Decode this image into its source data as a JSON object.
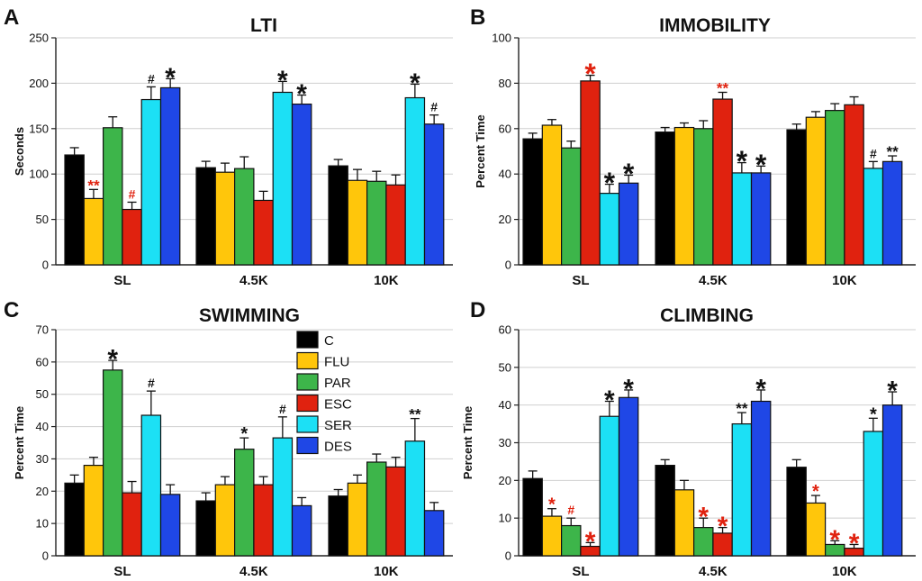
{
  "legend": {
    "items": [
      {
        "label": "C",
        "color": "#000000"
      },
      {
        "label": "FLU",
        "color": "#FFC60B"
      },
      {
        "label": "PAR",
        "color": "#3DB54A"
      },
      {
        "label": "ESC",
        "color": "#E0220F"
      },
      {
        "label": "SER",
        "color": "#1CE0F5"
      },
      {
        "label": "DES",
        "color": "#1F47E6"
      }
    ]
  },
  "chart_data": [
    {
      "panel": "A",
      "type": "bar",
      "title": "LTI",
      "ylabel": "Seconds",
      "ylim": [
        0,
        250
      ],
      "yticks": [
        0,
        50,
        100,
        150,
        200,
        250
      ],
      "categories": [
        "SL",
        "4.5K",
        "10K"
      ],
      "grid": true,
      "series": [
        {
          "name": "C",
          "values": [
            121,
            107,
            109
          ],
          "errors": [
            8,
            7,
            7
          ]
        },
        {
          "name": "FLU",
          "values": [
            73,
            102,
            93
          ],
          "errors": [
            10,
            10,
            12
          ]
        },
        {
          "name": "PAR",
          "values": [
            151,
            106,
            92
          ],
          "errors": [
            12,
            13,
            11
          ]
        },
        {
          "name": "ESC",
          "values": [
            61,
            71,
            88
          ],
          "errors": [
            8,
            10,
            11
          ]
        },
        {
          "name": "SER",
          "values": [
            182,
            190,
            184
          ],
          "errors": [
            14,
            12,
            15
          ]
        },
        {
          "name": "DES",
          "values": [
            195,
            177,
            155
          ],
          "errors": [
            10,
            10,
            10
          ]
        }
      ],
      "annotations": [
        {
          "category": "SL",
          "series": "FLU",
          "text": "**",
          "color": "#E0220F",
          "size": 17
        },
        {
          "category": "SL",
          "series": "ESC",
          "text": "#",
          "color": "#E0220F",
          "size": 14
        },
        {
          "category": "SL",
          "series": "SER",
          "text": "#",
          "color": "#111111",
          "size": 14
        },
        {
          "category": "SL",
          "series": "DES",
          "text": "*",
          "color": "#111111",
          "size": 30
        },
        {
          "category": "4.5K",
          "series": "SER",
          "text": "*",
          "color": "#111111",
          "size": 30
        },
        {
          "category": "4.5K",
          "series": "DES",
          "text": "*",
          "color": "#111111",
          "size": 30
        },
        {
          "category": "10K",
          "series": "SER",
          "text": "*",
          "color": "#111111",
          "size": 30
        },
        {
          "category": "10K",
          "series": "DES",
          "text": "#",
          "color": "#111111",
          "size": 14
        }
      ]
    },
    {
      "panel": "B",
      "type": "bar",
      "title": "IMMOBILITY",
      "ylabel": "Percent Time",
      "ylim": [
        0,
        100
      ],
      "yticks": [
        0,
        20,
        40,
        60,
        80,
        100
      ],
      "categories": [
        "SL",
        "4.5K",
        "10K"
      ],
      "grid": true,
      "series": [
        {
          "name": "C",
          "values": [
            55.5,
            58.5,
            59.5
          ],
          "errors": [
            2.5,
            2,
            2.5
          ]
        },
        {
          "name": "FLU",
          "values": [
            61.5,
            60.5,
            65
          ],
          "errors": [
            2.5,
            2,
            2.5
          ]
        },
        {
          "name": "PAR",
          "values": [
            51.5,
            60,
            68
          ],
          "errors": [
            3,
            3.5,
            3
          ]
        },
        {
          "name": "ESC",
          "values": [
            81,
            73,
            70.5
          ],
          "errors": [
            2.5,
            3,
            3.5
          ]
        },
        {
          "name": "SER",
          "values": [
            31.5,
            40.5,
            42.5
          ],
          "errors": [
            4,
            4.5,
            3
          ]
        },
        {
          "name": "DES",
          "values": [
            36,
            40.5,
            45.5
          ],
          "errors": [
            3.5,
            3,
            2.5
          ]
        }
      ],
      "annotations": [
        {
          "category": "SL",
          "series": "ESC",
          "text": "*",
          "color": "#E0220F",
          "size": 32
        },
        {
          "category": "SL",
          "series": "SER",
          "text": "*",
          "color": "#111111",
          "size": 32
        },
        {
          "category": "SL",
          "series": "DES",
          "text": "*",
          "color": "#111111",
          "size": 32
        },
        {
          "category": "4.5K",
          "series": "ESC",
          "text": "**",
          "color": "#E0220F",
          "size": 17
        },
        {
          "category": "4.5K",
          "series": "SER",
          "text": "*",
          "color": "#111111",
          "size": 32
        },
        {
          "category": "4.5K",
          "series": "DES",
          "text": "*",
          "color": "#111111",
          "size": 32
        },
        {
          "category": "10K",
          "series": "SER",
          "text": "#",
          "color": "#111111",
          "size": 14
        },
        {
          "category": "10K",
          "series": "DES",
          "text": "**",
          "color": "#111111",
          "size": 17
        }
      ]
    },
    {
      "panel": "C",
      "type": "bar",
      "title": "SWIMMING",
      "ylabel": "Percent Time",
      "ylim": [
        0,
        70
      ],
      "yticks": [
        0,
        10,
        20,
        30,
        40,
        50,
        60,
        70
      ],
      "categories": [
        "SL",
        "4.5K",
        "10K"
      ],
      "grid": true,
      "legend": "inside, center",
      "series": [
        {
          "name": "C",
          "values": [
            22.5,
            17,
            18.5
          ],
          "errors": [
            2.5,
            2.5,
            2
          ]
        },
        {
          "name": "FLU",
          "values": [
            28,
            22,
            22.5
          ],
          "errors": [
            2.5,
            2.5,
            2.5
          ]
        },
        {
          "name": "PAR",
          "values": [
            57.5,
            33,
            29
          ],
          "errors": [
            3,
            3.5,
            2.5
          ]
        },
        {
          "name": "ESC",
          "values": [
            19.5,
            22,
            27.5
          ],
          "errors": [
            3.5,
            2.5,
            3
          ]
        },
        {
          "name": "SER",
          "values": [
            43.5,
            36.5,
            35.5
          ],
          "errors": [
            7.5,
            6.5,
            7
          ]
        },
        {
          "name": "DES",
          "values": [
            19,
            15.5,
            14
          ],
          "errors": [
            3,
            2.5,
            2.5
          ]
        }
      ],
      "annotations": [
        {
          "category": "SL",
          "series": "PAR",
          "text": "*",
          "color": "#111111",
          "size": 30
        },
        {
          "category": "SL",
          "series": "SER",
          "text": "#",
          "color": "#111111",
          "size": 14
        },
        {
          "category": "4.5K",
          "series": "PAR",
          "text": "*",
          "color": "#111111",
          "size": 20
        },
        {
          "category": "4.5K",
          "series": "SER",
          "text": "#",
          "color": "#111111",
          "size": 14
        },
        {
          "category": "10K",
          "series": "SER",
          "text": "**",
          "color": "#111111",
          "size": 17
        }
      ]
    },
    {
      "panel": "D",
      "type": "bar",
      "title": "CLIMBING",
      "ylabel": "Percent Time",
      "ylim": [
        0,
        60
      ],
      "yticks": [
        0,
        10,
        20,
        30,
        40,
        50,
        60
      ],
      "categories": [
        "SL",
        "4.5K",
        "10K"
      ],
      "grid": true,
      "series": [
        {
          "name": "C",
          "values": [
            20.5,
            24,
            23.5
          ],
          "errors": [
            2,
            1.5,
            2
          ]
        },
        {
          "name": "FLU",
          "values": [
            10.5,
            17.5,
            14
          ],
          "errors": [
            2,
            2.5,
            2
          ]
        },
        {
          "name": "PAR",
          "values": [
            8,
            7.5,
            3
          ],
          "errors": [
            2,
            2.5,
            1
          ]
        },
        {
          "name": "ESC",
          "values": [
            2.5,
            6,
            2
          ],
          "errors": [
            1,
            1.5,
            1
          ]
        },
        {
          "name": "SER",
          "values": [
            37,
            35,
            33
          ],
          "errors": [
            4,
            3,
            3.5
          ]
        },
        {
          "name": "DES",
          "values": [
            42,
            41,
            40
          ],
          "errors": [
            2,
            3,
            3.5
          ]
        }
      ],
      "annotations": [
        {
          "category": "SL",
          "series": "FLU",
          "text": "*",
          "color": "#E0220F",
          "size": 20
        },
        {
          "category": "SL",
          "series": "PAR",
          "text": "#",
          "color": "#E0220F",
          "size": 14
        },
        {
          "category": "SL",
          "series": "ESC",
          "text": "*",
          "color": "#E0220F",
          "size": 30
        },
        {
          "category": "SL",
          "series": "SER",
          "text": "*",
          "color": "#111111",
          "size": 30
        },
        {
          "category": "SL",
          "series": "DES",
          "text": "*",
          "color": "#111111",
          "size": 30
        },
        {
          "category": "4.5K",
          "series": "PAR",
          "text": "*",
          "color": "#E0220F",
          "size": 30
        },
        {
          "category": "4.5K",
          "series": "ESC",
          "text": "*",
          "color": "#E0220F",
          "size": 30
        },
        {
          "category": "4.5K",
          "series": "SER",
          "text": "**",
          "color": "#111111",
          "size": 17
        },
        {
          "category": "4.5K",
          "series": "DES",
          "text": "*",
          "color": "#111111",
          "size": 30
        },
        {
          "category": "10K",
          "series": "FLU",
          "text": "*",
          "color": "#E0220F",
          "size": 20
        },
        {
          "category": "10K",
          "series": "PAR",
          "text": "*",
          "color": "#E0220F",
          "size": 30
        },
        {
          "category": "10K",
          "series": "ESC",
          "text": "*",
          "color": "#E0220F",
          "size": 30
        },
        {
          "category": "10K",
          "series": "SER",
          "text": "*",
          "color": "#111111",
          "size": 20
        },
        {
          "category": "10K",
          "series": "DES",
          "text": "*",
          "color": "#111111",
          "size": 30
        }
      ]
    }
  ]
}
